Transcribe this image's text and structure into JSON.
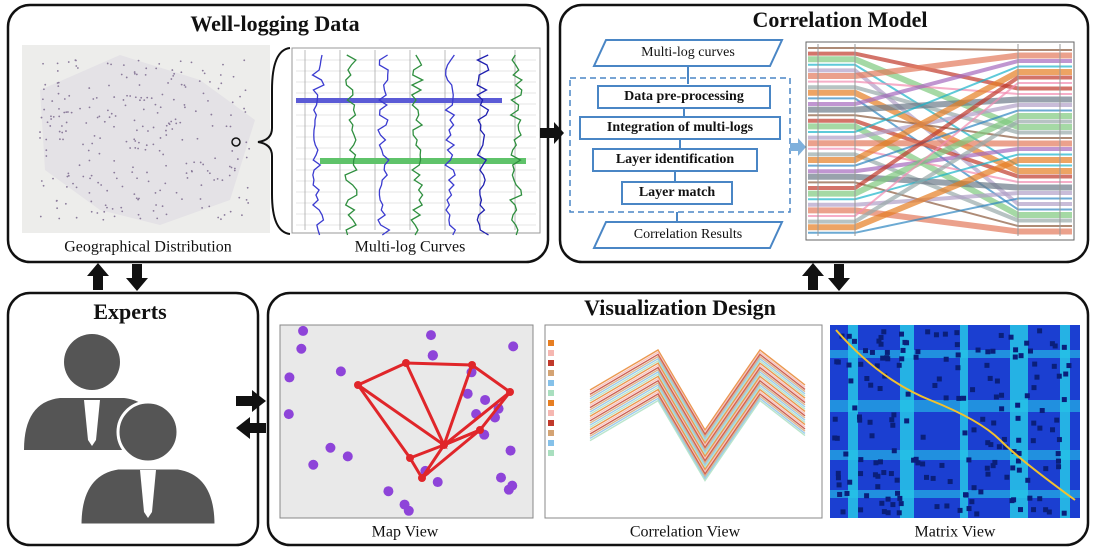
{
  "panels": {
    "well_logging": {
      "title": "Well-logging Data",
      "captions": [
        "Geographical Distribution",
        "Multi-log Curves"
      ]
    },
    "correlation_model": {
      "title": "Correlation Model",
      "flow": {
        "input": "Multi-log curves",
        "steps": [
          "Data pre-processing",
          "Integration of multi-logs",
          "Layer identification",
          "Layer match"
        ],
        "output": "Correlation Results"
      }
    },
    "experts": {
      "title": "Experts"
    },
    "visualization_design": {
      "title": "Visualization Design",
      "views": [
        "Map View",
        "Correlation View",
        "Matrix View"
      ]
    }
  }
}
